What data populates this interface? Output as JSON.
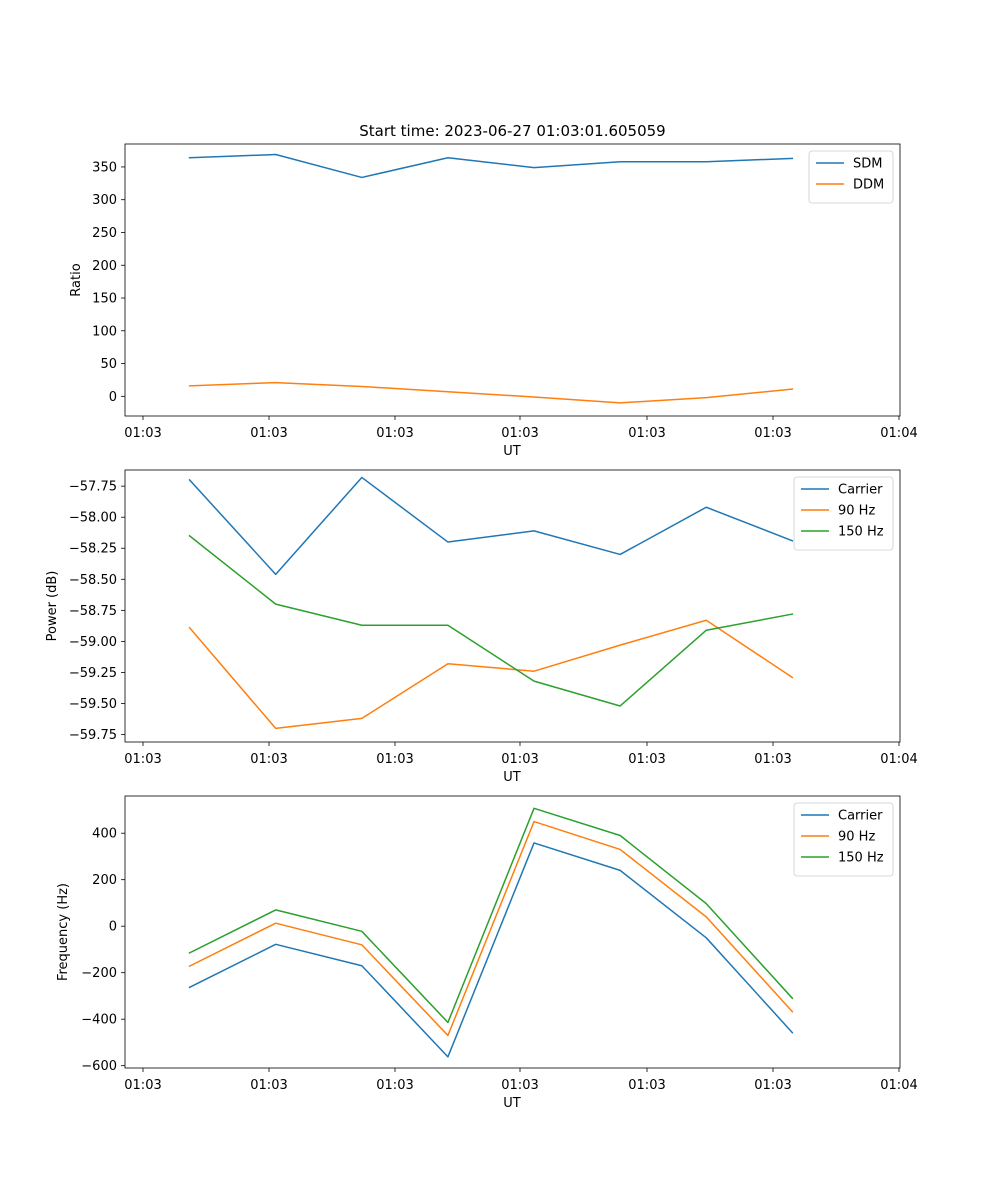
{
  "figure": {
    "title": "Start time: 2023-06-27 01:03:01.605059"
  },
  "chart_data": [
    {
      "type": "line",
      "xlabel": "UT",
      "ylabel": "Ratio",
      "x_tick_labels": [
        "01:03",
        "01:03",
        "01:03",
        "01:03",
        "01:03",
        "01:03",
        "01:04"
      ],
      "x": [
        1,
        2,
        3,
        4,
        5,
        6,
        7,
        8
      ],
      "xlim": [
        0.25,
        9.25
      ],
      "ylim": [
        -30,
        385
      ],
      "yticks": [
        0,
        50,
        100,
        150,
        200,
        250,
        300,
        350
      ],
      "legend": "top-right",
      "series": [
        {
          "name": "SDM",
          "color": "#1f77b4",
          "values": [
            364,
            369,
            334,
            364,
            349,
            358,
            358,
            363
          ]
        },
        {
          "name": "DDM",
          "color": "#ff7f0e",
          "values": [
            16,
            21,
            15,
            7,
            -1,
            -10,
            -2,
            11
          ]
        }
      ]
    },
    {
      "type": "line",
      "xlabel": "UT",
      "ylabel": "Power (dB)",
      "x_tick_labels": [
        "01:03",
        "01:03",
        "01:03",
        "01:03",
        "01:03",
        "01:03",
        "01:04"
      ],
      "x": [
        1,
        2,
        3,
        4,
        5,
        6,
        7,
        8
      ],
      "xlim": [
        0.25,
        9.25
      ],
      "ylim": [
        -59.81,
        -57.62
      ],
      "yticks": [
        -59.75,
        -59.5,
        -59.25,
        -59.0,
        -58.75,
        -58.5,
        -58.25,
        -58.0,
        -57.75
      ],
      "ytick_labels": [
        "−59.75",
        "−59.50",
        "−59.25",
        "−59.00",
        "−58.75",
        "−58.50",
        "−58.25",
        "−58.00",
        "−57.75"
      ],
      "legend": "top-right",
      "series": [
        {
          "name": "Carrier",
          "color": "#1f77b4",
          "values": [
            -57.7,
            -58.46,
            -57.68,
            -58.2,
            -58.11,
            -58.3,
            -57.92,
            -58.19
          ]
        },
        {
          "name": "90 Hz",
          "color": "#ff7f0e",
          "values": [
            -58.89,
            -59.7,
            -59.62,
            -59.18,
            -59.24,
            -59.03,
            -58.83,
            -59.29
          ]
        },
        {
          "name": "150 Hz",
          "color": "#2ca02c",
          "values": [
            -58.15,
            -58.7,
            -58.87,
            -58.87,
            -59.32,
            -59.52,
            -58.91,
            -58.78
          ]
        }
      ]
    },
    {
      "type": "line",
      "xlabel": "UT",
      "ylabel": "Frequency (Hz)",
      "x_tick_labels": [
        "01:03",
        "01:03",
        "01:03",
        "01:03",
        "01:03",
        "01:03",
        "01:04"
      ],
      "x": [
        1,
        2,
        3,
        4,
        5,
        6,
        7,
        8
      ],
      "xlim": [
        0.25,
        9.25
      ],
      "ylim": [
        -610,
        560
      ],
      "yticks": [
        -600,
        -400,
        -200,
        0,
        200,
        400
      ],
      "ytick_labels": [
        "−600",
        "−400",
        "−200",
        "0",
        "200",
        "400"
      ],
      "legend": "top-right",
      "series": [
        {
          "name": "Carrier",
          "color": "#1f77b4",
          "values": [
            -263,
            -78,
            -170,
            -562,
            358,
            240,
            -50,
            -458
          ]
        },
        {
          "name": "90 Hz",
          "color": "#ff7f0e",
          "values": [
            -172,
            13,
            -80,
            -470,
            450,
            330,
            40,
            -368
          ]
        },
        {
          "name": "150 Hz",
          "color": "#2ca02c",
          "values": [
            -115,
            70,
            -22,
            -414,
            507,
            390,
            97,
            -310
          ]
        }
      ]
    }
  ]
}
